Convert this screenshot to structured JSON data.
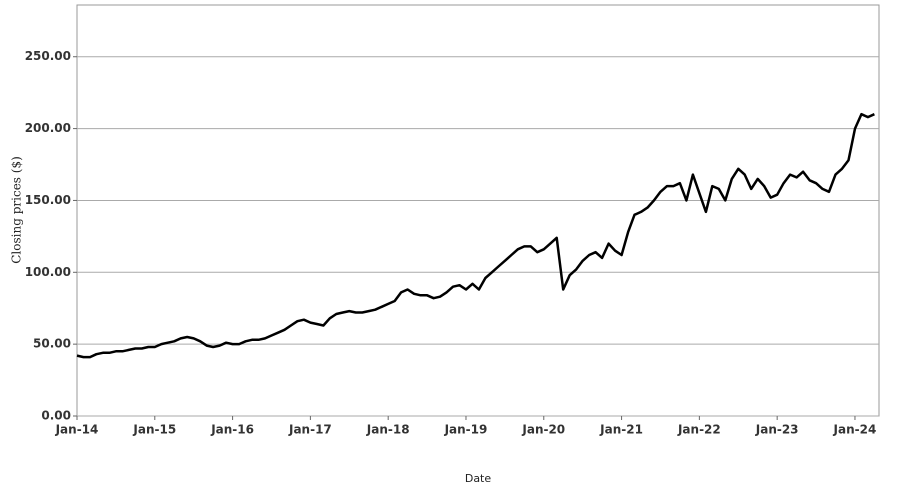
{
  "chart_data": {
    "type": "line",
    "x_label": "Date",
    "y_label": "Closing prices ($)",
    "x": [
      "Jan-14",
      "Feb-14",
      "Mar-14",
      "Apr-14",
      "May-14",
      "Jun-14",
      "Jul-14",
      "Aug-14",
      "Sep-14",
      "Oct-14",
      "Nov-14",
      "Dec-14",
      "Jan-15",
      "Feb-15",
      "Mar-15",
      "Apr-15",
      "May-15",
      "Jun-15",
      "Jul-15",
      "Aug-15",
      "Sep-15",
      "Oct-15",
      "Nov-15",
      "Dec-15",
      "Jan-16",
      "Feb-16",
      "Mar-16",
      "Apr-16",
      "May-16",
      "Jun-16",
      "Jul-16",
      "Aug-16",
      "Sep-16",
      "Oct-16",
      "Nov-16",
      "Dec-16",
      "Jan-17",
      "Feb-17",
      "Mar-17",
      "Apr-17",
      "May-17",
      "Jun-17",
      "Jul-17",
      "Aug-17",
      "Sep-17",
      "Oct-17",
      "Nov-17",
      "Dec-17",
      "Jan-18",
      "Feb-18",
      "Mar-18",
      "Apr-18",
      "May-18",
      "Jun-18",
      "Jul-18",
      "Aug-18",
      "Sep-18",
      "Oct-18",
      "Nov-18",
      "Dec-18",
      "Jan-19",
      "Feb-19",
      "Mar-19",
      "Apr-19",
      "May-19",
      "Jun-19",
      "Jul-19",
      "Aug-19",
      "Sep-19",
      "Oct-19",
      "Nov-19",
      "Dec-19",
      "Jan-20",
      "Feb-20",
      "Mar-20",
      "Apr-20",
      "May-20",
      "Jun-20",
      "Jul-20",
      "Aug-20",
      "Sep-20",
      "Oct-20",
      "Nov-20",
      "Dec-20",
      "Jan-21",
      "Feb-21",
      "Mar-21",
      "Apr-21",
      "May-21",
      "Jun-21",
      "Jul-21",
      "Aug-21",
      "Sep-21",
      "Oct-21",
      "Nov-21",
      "Dec-21",
      "Jan-22",
      "Feb-22",
      "Mar-22",
      "Apr-22",
      "May-22",
      "Jun-22",
      "Jul-22",
      "Aug-22",
      "Sep-22",
      "Oct-22",
      "Nov-22",
      "Dec-22",
      "Jan-23",
      "Feb-23",
      "Mar-23",
      "Apr-23",
      "May-23",
      "Jun-23",
      "Jul-23",
      "Aug-23",
      "Sep-23",
      "Oct-23",
      "Nov-23",
      "Dec-23",
      "Jan-24",
      "Feb-24",
      "Mar-24",
      "Apr-24"
    ],
    "xtick_every": 12,
    "series": [
      {
        "name": "Close",
        "color": "#000000",
        "values": [
          42,
          41,
          41,
          43,
          44,
          44,
          45,
          45,
          46,
          47,
          47,
          48,
          48,
          50,
          51,
          52,
          54,
          55,
          54,
          52,
          49,
          48,
          49,
          51,
          50,
          50,
          52,
          53,
          53,
          54,
          56,
          58,
          60,
          63,
          66,
          67,
          65,
          64,
          63,
          68,
          71,
          72,
          73,
          72,
          72,
          73,
          74,
          76,
          78,
          80,
          86,
          88,
          85,
          84,
          84,
          82,
          83,
          86,
          90,
          91,
          88,
          92,
          88,
          96,
          100,
          104,
          108,
          112,
          116,
          118,
          118,
          114,
          116,
          120,
          124,
          88,
          98,
          102,
          108,
          112,
          114,
          110,
          120,
          115,
          112,
          128,
          140,
          142,
          145,
          150,
          156,
          160,
          160,
          162,
          150,
          168,
          155,
          142,
          160,
          158,
          150,
          165,
          172,
          168,
          158,
          165,
          160,
          152,
          154,
          162,
          168,
          166,
          170,
          164,
          162,
          158,
          156,
          168,
          172,
          178,
          200,
          210,
          208,
          210
        ]
      }
    ],
    "ylim": [
      0,
      286
    ],
    "yticks": [
      {
        "value": 0,
        "label": "0.00"
      },
      {
        "value": 50,
        "label": "50.00"
      },
      {
        "value": 100,
        "label": "100.00"
      },
      {
        "value": 150,
        "label": "150.00"
      },
      {
        "value": 200,
        "label": "200.00"
      },
      {
        "value": 250,
        "label": "250.00"
      }
    ],
    "grid": true
  }
}
